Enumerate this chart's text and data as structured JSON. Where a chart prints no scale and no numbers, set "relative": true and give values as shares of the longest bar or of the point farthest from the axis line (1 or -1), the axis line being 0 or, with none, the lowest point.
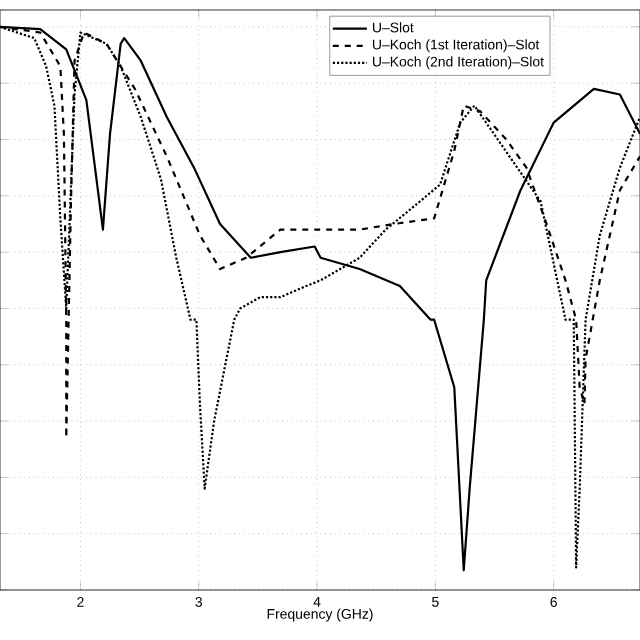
{
  "chart_data": {
    "type": "line",
    "relative": true,
    "xlabel": "Frequency (GHz)",
    "xlim": [
      1.32,
      6.73
    ],
    "xticks": [
      2,
      3,
      4,
      5,
      6
    ],
    "grid": true,
    "legend": "top right",
    "tick_labels": "x",
    "series": [
      {
        "name": "U–Slot",
        "color": "#000000",
        "line_style": "solid",
        "x": [
          1.32,
          1.66,
          1.88,
          2.05,
          2.19,
          2.25,
          2.34,
          2.37,
          2.51,
          2.73,
          2.96,
          3.18,
          3.44,
          3.69,
          3.98,
          4.03,
          4.36,
          4.7,
          4.96,
          4.99,
          5.16,
          5.24,
          5.29,
          5.41,
          5.43,
          5.72,
          6.0,
          6.34,
          6.56,
          6.73
        ],
        "values": [
          1.0,
          0.996,
          0.96,
          0.87,
          0.64,
          0.81,
          0.97,
          0.98,
          0.94,
          0.84,
          0.75,
          0.65,
          0.59,
          0.6,
          0.61,
          0.59,
          0.57,
          0.54,
          0.48,
          0.48,
          0.36,
          0.035,
          0.18,
          0.48,
          0.55,
          0.71,
          0.83,
          0.89,
          0.88,
          0.81
        ]
      },
      {
        "name": "U–Koch (1st Iteration)–Slot",
        "color": "#000000",
        "line_style": "dashed",
        "x": [
          1.32,
          1.66,
          1.83,
          1.86,
          1.88,
          1.88,
          1.92,
          1.95,
          2.03,
          2.22,
          2.46,
          2.73,
          3.01,
          3.18,
          3.4,
          3.69,
          3.98,
          4.03,
          4.36,
          4.65,
          4.99,
          5.16,
          5.24,
          5.38,
          5.6,
          5.77,
          5.94,
          6.1,
          6.19,
          6.22,
          6.26,
          6.27,
          6.39,
          6.56,
          6.73
        ],
        "values": [
          1.0,
          0.99,
          0.93,
          0.81,
          0.48,
          0.27,
          0.69,
          0.94,
          0.99,
          0.97,
          0.89,
          0.77,
          0.63,
          0.57,
          0.59,
          0.64,
          0.64,
          0.64,
          0.64,
          0.65,
          0.66,
          0.78,
          0.86,
          0.85,
          0.8,
          0.75,
          0.65,
          0.55,
          0.48,
          0.36,
          0.33,
          0.41,
          0.55,
          0.71,
          0.77
        ]
      },
      {
        "name": "U–Koch (2nd Iteration)–Slot",
        "color": "#000000",
        "line_style": "dotted",
        "x": [
          1.32,
          1.61,
          1.71,
          1.78,
          1.83,
          1.88,
          1.95,
          2.0,
          2.22,
          2.34,
          2.51,
          2.68,
          2.81,
          2.93,
          2.98,
          3.01,
          3.05,
          3.13,
          3.3,
          3.35,
          3.52,
          3.69,
          3.91,
          4.03,
          4.36,
          4.58,
          4.87,
          5.04,
          5.21,
          5.33,
          5.89,
          6.1,
          6.17,
          6.19,
          6.22,
          6.27,
          6.39,
          6.56,
          6.73
        ],
        "values": [
          1.0,
          0.98,
          0.93,
          0.86,
          0.66,
          0.5,
          0.88,
          0.99,
          0.97,
          0.93,
          0.84,
          0.73,
          0.59,
          0.48,
          0.48,
          0.33,
          0.18,
          0.3,
          0.48,
          0.5,
          0.52,
          0.52,
          0.54,
          0.55,
          0.59,
          0.64,
          0.69,
          0.72,
          0.83,
          0.86,
          0.69,
          0.48,
          0.48,
          0.04,
          0.18,
          0.48,
          0.63,
          0.75,
          0.84
        ]
      }
    ]
  }
}
